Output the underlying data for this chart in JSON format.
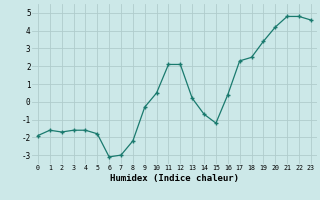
{
  "x": [
    0,
    1,
    2,
    3,
    4,
    5,
    6,
    7,
    8,
    9,
    10,
    11,
    12,
    13,
    14,
    15,
    16,
    17,
    18,
    19,
    20,
    21,
    22,
    23
  ],
  "y": [
    -1.9,
    -1.6,
    -1.7,
    -1.6,
    -1.6,
    -1.8,
    -3.1,
    -3.0,
    -2.2,
    -0.3,
    0.5,
    2.1,
    2.1,
    0.2,
    -0.7,
    -1.2,
    0.4,
    2.3,
    2.5,
    3.4,
    4.2,
    4.8,
    4.8,
    4.6
  ],
  "xlabel": "Humidex (Indice chaleur)",
  "line_color": "#1a7a6e",
  "marker": "+",
  "bg_color": "#cce8e8",
  "grid_color": "#b0cccc",
  "xlim": [
    -0.5,
    23.5
  ],
  "ylim": [
    -3.5,
    5.5
  ],
  "yticks": [
    -3,
    -2,
    -1,
    0,
    1,
    2,
    3,
    4,
    5
  ],
  "xticks": [
    0,
    1,
    2,
    3,
    4,
    5,
    6,
    7,
    8,
    9,
    10,
    11,
    12,
    13,
    14,
    15,
    16,
    17,
    18,
    19,
    20,
    21,
    22,
    23
  ]
}
